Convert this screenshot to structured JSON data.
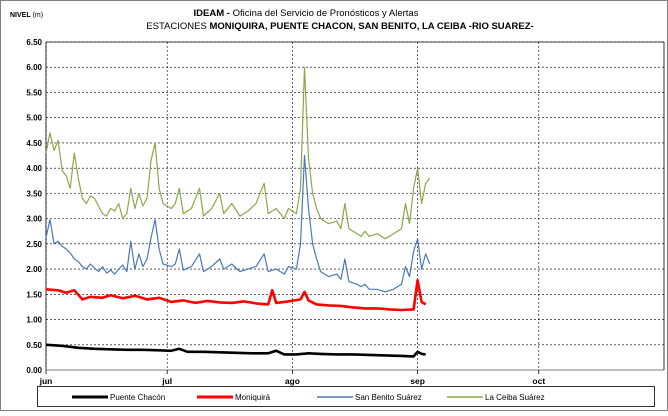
{
  "chart_data": {
    "type": "line",
    "title_bold": "IDEAM -",
    "title_rest": " Oficina del Servicio de Pronósticos y Alertas",
    "subtitle_prefix": "ESTACIONES ",
    "subtitle_bold": "MONIQUIRA, PUENTE CHACON, SAN BENITO, LA CEIBA  -RIO SUAREZ-",
    "ylabel_bold": "NIVEL",
    "ylabel_unit": " (m)",
    "ylim": [
      0,
      6.5
    ],
    "yticks": [
      "0.00",
      "0.50",
      "1.00",
      "1.50",
      "2.00",
      "2.50",
      "3.00",
      "3.50",
      "4.00",
      "4.50",
      "5.00",
      "5.50",
      "6.00",
      "6.50"
    ],
    "xlim": [
      "2010-06-01",
      "2010-11-01"
    ],
    "xticks": [
      {
        "label": "jun",
        "date": "2010-06-01"
      },
      {
        "label": "jul",
        "date": "2010-07-01"
      },
      {
        "label": "ago",
        "date": "2010-08-01"
      },
      {
        "label": "sep",
        "date": "2010-09-01"
      },
      {
        "label": "oct",
        "date": "2010-10-01"
      }
    ],
    "grid": true,
    "legend_position": "bottom",
    "series": [
      {
        "name": "Puente Chacón",
        "color": "#000000",
        "width": 2.6,
        "points": [
          [
            "2010-06-01",
            0.5
          ],
          [
            "2010-06-05",
            0.48
          ],
          [
            "2010-06-09",
            0.44
          ],
          [
            "2010-06-13",
            0.42
          ],
          [
            "2010-06-17",
            0.41
          ],
          [
            "2010-06-21",
            0.4
          ],
          [
            "2010-06-25",
            0.4
          ],
          [
            "2010-06-29",
            0.39
          ],
          [
            "2010-07-02",
            0.38
          ],
          [
            "2010-07-04",
            0.42
          ],
          [
            "2010-07-06",
            0.36
          ],
          [
            "2010-07-10",
            0.36
          ],
          [
            "2010-07-14",
            0.35
          ],
          [
            "2010-07-18",
            0.34
          ],
          [
            "2010-07-22",
            0.33
          ],
          [
            "2010-07-26",
            0.33
          ],
          [
            "2010-07-28",
            0.38
          ],
          [
            "2010-07-30",
            0.31
          ],
          [
            "2010-08-02",
            0.31
          ],
          [
            "2010-08-05",
            0.33
          ],
          [
            "2010-08-08",
            0.32
          ],
          [
            "2010-08-12",
            0.31
          ],
          [
            "2010-08-16",
            0.31
          ],
          [
            "2010-08-20",
            0.3
          ],
          [
            "2010-08-24",
            0.29
          ],
          [
            "2010-08-28",
            0.28
          ],
          [
            "2010-08-31",
            0.27
          ],
          [
            "2010-09-01",
            0.36
          ],
          [
            "2010-09-02",
            0.32
          ],
          [
            "2010-09-03",
            0.31
          ]
        ]
      },
      {
        "name": "Moniquirá",
        "color": "#ff0000",
        "width": 2.6,
        "points": [
          [
            "2010-06-01",
            1.6
          ],
          [
            "2010-06-04",
            1.58
          ],
          [
            "2010-06-06",
            1.53
          ],
          [
            "2010-06-08",
            1.58
          ],
          [
            "2010-06-10",
            1.4
          ],
          [
            "2010-06-12",
            1.45
          ],
          [
            "2010-06-15",
            1.43
          ],
          [
            "2010-06-17",
            1.48
          ],
          [
            "2010-06-20",
            1.42
          ],
          [
            "2010-06-23",
            1.47
          ],
          [
            "2010-06-26",
            1.4
          ],
          [
            "2010-06-29",
            1.43
          ],
          [
            "2010-07-02",
            1.35
          ],
          [
            "2010-07-05",
            1.38
          ],
          [
            "2010-07-08",
            1.33
          ],
          [
            "2010-07-11",
            1.37
          ],
          [
            "2010-07-14",
            1.34
          ],
          [
            "2010-07-17",
            1.33
          ],
          [
            "2010-07-20",
            1.36
          ],
          [
            "2010-07-23",
            1.32
          ],
          [
            "2010-07-26",
            1.3
          ],
          [
            "2010-07-27",
            1.58
          ],
          [
            "2010-07-28",
            1.33
          ],
          [
            "2010-07-31",
            1.36
          ],
          [
            "2010-08-03",
            1.4
          ],
          [
            "2010-08-04",
            1.55
          ],
          [
            "2010-08-05",
            1.38
          ],
          [
            "2010-08-07",
            1.3
          ],
          [
            "2010-08-10",
            1.28
          ],
          [
            "2010-08-13",
            1.27
          ],
          [
            "2010-08-16",
            1.24
          ],
          [
            "2010-08-19",
            1.22
          ],
          [
            "2010-08-22",
            1.22
          ],
          [
            "2010-08-25",
            1.2
          ],
          [
            "2010-08-28",
            1.19
          ],
          [
            "2010-08-31",
            1.2
          ],
          [
            "2010-09-01",
            1.78
          ],
          [
            "2010-09-02",
            1.35
          ],
          [
            "2010-09-03",
            1.3
          ]
        ]
      },
      {
        "name": "San Benito  Suárez",
        "color": "#4a79b8",
        "width": 1.2,
        "points": [
          [
            "2010-06-01",
            2.62
          ],
          [
            "2010-06-02",
            2.98
          ],
          [
            "2010-06-03",
            2.5
          ],
          [
            "2010-06-04",
            2.55
          ],
          [
            "2010-06-05",
            2.45
          ],
          [
            "2010-06-06",
            2.4
          ],
          [
            "2010-06-07",
            2.32
          ],
          [
            "2010-06-08",
            2.2
          ],
          [
            "2010-06-09",
            2.15
          ],
          [
            "2010-06-10",
            2.05
          ],
          [
            "2010-06-11",
            2.0
          ],
          [
            "2010-06-12",
            2.1
          ],
          [
            "2010-06-13",
            2.02
          ],
          [
            "2010-06-14",
            1.95
          ],
          [
            "2010-06-15",
            2.05
          ],
          [
            "2010-06-16",
            1.92
          ],
          [
            "2010-06-17",
            1.98
          ],
          [
            "2010-06-18",
            1.9
          ],
          [
            "2010-06-19",
            2.0
          ],
          [
            "2010-06-20",
            2.08
          ],
          [
            "2010-06-21",
            1.95
          ],
          [
            "2010-06-22",
            2.55
          ],
          [
            "2010-06-23",
            2.0
          ],
          [
            "2010-06-24",
            2.3
          ],
          [
            "2010-06-25",
            2.05
          ],
          [
            "2010-06-26",
            2.2
          ],
          [
            "2010-06-27",
            2.62
          ],
          [
            "2010-06-28",
            2.98
          ],
          [
            "2010-06-29",
            2.4
          ],
          [
            "2010-06-30",
            2.1
          ],
          [
            "2010-07-02",
            2.05
          ],
          [
            "2010-07-03",
            2.1
          ],
          [
            "2010-07-04",
            2.4
          ],
          [
            "2010-07-05",
            1.98
          ],
          [
            "2010-07-07",
            2.05
          ],
          [
            "2010-07-09",
            2.3
          ],
          [
            "2010-07-10",
            1.95
          ],
          [
            "2010-07-12",
            2.05
          ],
          [
            "2010-07-14",
            2.2
          ],
          [
            "2010-07-15",
            2.0
          ],
          [
            "2010-07-17",
            2.1
          ],
          [
            "2010-07-19",
            1.95
          ],
          [
            "2010-07-21",
            2.0
          ],
          [
            "2010-07-23",
            2.05
          ],
          [
            "2010-07-25",
            2.3
          ],
          [
            "2010-07-26",
            1.95
          ],
          [
            "2010-07-28",
            2.0
          ],
          [
            "2010-07-30",
            1.9
          ],
          [
            "2010-07-31",
            2.05
          ],
          [
            "2010-08-02",
            2.0
          ],
          [
            "2010-08-03",
            2.5
          ],
          [
            "2010-08-04",
            4.25
          ],
          [
            "2010-08-05",
            3.2
          ],
          [
            "2010-08-06",
            2.5
          ],
          [
            "2010-08-07",
            2.2
          ],
          [
            "2010-08-08",
            1.95
          ],
          [
            "2010-08-10",
            1.85
          ],
          [
            "2010-08-12",
            1.9
          ],
          [
            "2010-08-13",
            1.8
          ],
          [
            "2010-08-14",
            2.2
          ],
          [
            "2010-08-15",
            1.75
          ],
          [
            "2010-08-17",
            1.7
          ],
          [
            "2010-08-18",
            1.65
          ],
          [
            "2010-08-19",
            1.7
          ],
          [
            "2010-08-20",
            1.6
          ],
          [
            "2010-08-22",
            1.6
          ],
          [
            "2010-08-24",
            1.55
          ],
          [
            "2010-08-26",
            1.6
          ],
          [
            "2010-08-28",
            1.7
          ],
          [
            "2010-08-29",
            2.05
          ],
          [
            "2010-08-30",
            1.85
          ],
          [
            "2010-08-31",
            2.35
          ],
          [
            "2010-09-01",
            2.6
          ],
          [
            "2010-09-02",
            2.0
          ],
          [
            "2010-09-03",
            2.3
          ],
          [
            "2010-09-04",
            2.1
          ]
        ]
      },
      {
        "name": "La Ceiba  Suárez",
        "color": "#8aa84a",
        "width": 1.2,
        "points": [
          [
            "2010-06-01",
            4.3
          ],
          [
            "2010-06-02",
            4.7
          ],
          [
            "2010-06-03",
            4.35
          ],
          [
            "2010-06-04",
            4.55
          ],
          [
            "2010-06-05",
            3.95
          ],
          [
            "2010-06-06",
            3.85
          ],
          [
            "2010-06-07",
            3.6
          ],
          [
            "2010-06-08",
            4.3
          ],
          [
            "2010-06-09",
            3.8
          ],
          [
            "2010-06-10",
            3.4
          ],
          [
            "2010-06-11",
            3.3
          ],
          [
            "2010-06-12",
            3.45
          ],
          [
            "2010-06-13",
            3.4
          ],
          [
            "2010-06-14",
            3.25
          ],
          [
            "2010-06-15",
            3.1
          ],
          [
            "2010-06-16",
            3.05
          ],
          [
            "2010-06-17",
            3.2
          ],
          [
            "2010-06-18",
            3.15
          ],
          [
            "2010-06-19",
            3.3
          ],
          [
            "2010-06-20",
            3.0
          ],
          [
            "2010-06-21",
            3.1
          ],
          [
            "2010-06-22",
            3.6
          ],
          [
            "2010-06-23",
            3.2
          ],
          [
            "2010-06-24",
            3.5
          ],
          [
            "2010-06-25",
            3.25
          ],
          [
            "2010-06-26",
            3.4
          ],
          [
            "2010-06-27",
            4.15
          ],
          [
            "2010-06-28",
            4.5
          ],
          [
            "2010-06-29",
            3.6
          ],
          [
            "2010-06-30",
            3.3
          ],
          [
            "2010-07-02",
            3.2
          ],
          [
            "2010-07-03",
            3.3
          ],
          [
            "2010-07-04",
            3.6
          ],
          [
            "2010-07-05",
            3.1
          ],
          [
            "2010-07-07",
            3.2
          ],
          [
            "2010-07-09",
            3.6
          ],
          [
            "2010-07-10",
            3.05
          ],
          [
            "2010-07-12",
            3.2
          ],
          [
            "2010-07-14",
            3.5
          ],
          [
            "2010-07-15",
            3.1
          ],
          [
            "2010-07-17",
            3.3
          ],
          [
            "2010-07-19",
            3.05
          ],
          [
            "2010-07-21",
            3.15
          ],
          [
            "2010-07-23",
            3.3
          ],
          [
            "2010-07-25",
            3.7
          ],
          [
            "2010-07-26",
            3.1
          ],
          [
            "2010-07-28",
            3.2
          ],
          [
            "2010-07-30",
            3.0
          ],
          [
            "2010-07-31",
            3.2
          ],
          [
            "2010-08-02",
            3.1
          ],
          [
            "2010-08-03",
            3.6
          ],
          [
            "2010-08-04",
            6.0
          ],
          [
            "2010-08-05",
            4.2
          ],
          [
            "2010-08-06",
            3.5
          ],
          [
            "2010-08-07",
            3.2
          ],
          [
            "2010-08-08",
            3.0
          ],
          [
            "2010-08-10",
            2.9
          ],
          [
            "2010-08-12",
            2.95
          ],
          [
            "2010-08-13",
            2.8
          ],
          [
            "2010-08-14",
            3.3
          ],
          [
            "2010-08-15",
            2.8
          ],
          [
            "2010-08-17",
            2.7
          ],
          [
            "2010-08-18",
            2.65
          ],
          [
            "2010-08-19",
            2.75
          ],
          [
            "2010-08-20",
            2.65
          ],
          [
            "2010-08-22",
            2.7
          ],
          [
            "2010-08-24",
            2.6
          ],
          [
            "2010-08-26",
            2.7
          ],
          [
            "2010-08-28",
            2.8
          ],
          [
            "2010-08-29",
            3.3
          ],
          [
            "2010-08-30",
            2.9
          ],
          [
            "2010-08-31",
            3.6
          ],
          [
            "2010-09-01",
            4.0
          ],
          [
            "2010-09-02",
            3.3
          ],
          [
            "2010-09-03",
            3.7
          ],
          [
            "2010-09-04",
            3.8
          ]
        ]
      }
    ]
  }
}
